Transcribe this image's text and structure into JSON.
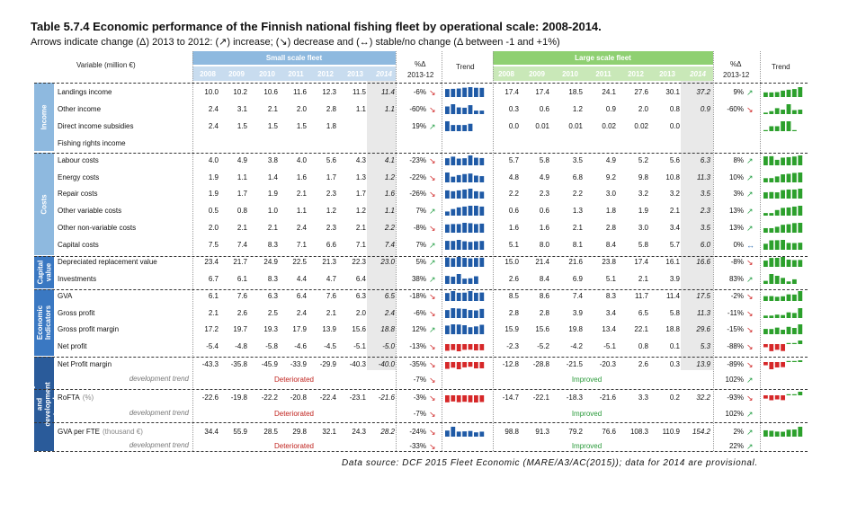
{
  "title": "Table 5.7.4 Economic performance of the Finnish national fishing fleet by operational scale: 2008-2014.",
  "subtitle": "Arrows indicate change (Δ) 2013 to 2012: (↗) increase; (↘) decrease and (↔) stable/no change (Δ between -1 and +1%)",
  "header": {
    "variable": "Variable (million €)",
    "small_fleet": "Small scale fleet",
    "large_fleet": "Large scale fleet",
    "pct_delta": "%Δ",
    "pct_years": "2013-12",
    "trend": "Trend",
    "years": [
      "2008",
      "2009",
      "2010",
      "2011",
      "2012",
      "2013",
      "2014"
    ]
  },
  "sections": [
    {
      "key": "income",
      "label": "Income",
      "color": "#8eb9df"
    },
    {
      "key": "costs",
      "label": "Costs",
      "color": "#8eb9df"
    },
    {
      "key": "capital",
      "label": "Capital value",
      "color": "#3a78c2"
    },
    {
      "key": "economic",
      "label": "Economic Indicators",
      "color": "#3a78c2"
    },
    {
      "key": "profitability",
      "label": "Profitability and development trends",
      "color": "#2a5b9a"
    }
  ],
  "rows": [
    {
      "label": "Landings income",
      "small": [
        "10.0",
        "10.2",
        "10.6",
        "11.6",
        "12.3",
        "11.5",
        "11.4"
      ],
      "spct": "-6%",
      "sarr": "down",
      "large": [
        "17.4",
        "17.4",
        "18.5",
        "24.1",
        "27.6",
        "30.1",
        "37.2"
      ],
      "lpct": "9%",
      "larr": "up"
    },
    {
      "label": "Other income",
      "small": [
        "2.4",
        "3.1",
        "2.1",
        "2.0",
        "2.8",
        "1.1",
        "1.1"
      ],
      "spct": "-60%",
      "sarr": "down",
      "large": [
        "0.3",
        "0.6",
        "1.2",
        "0.9",
        "2.0",
        "0.8",
        "0.9"
      ],
      "lpct": "-60%",
      "larr": "down"
    },
    {
      "label": "Direct income subsidies",
      "small": [
        "2.4",
        "1.5",
        "1.5",
        "1.5",
        "1.8",
        "",
        ""
      ],
      "spct": "19%",
      "sarr": "up",
      "large": [
        "0.0",
        "0.01",
        "0.01",
        "0.02",
        "0.02",
        "0.0",
        ""
      ],
      "lpct": "",
      "larr": ""
    },
    {
      "label": "Fishing rights income",
      "small": [
        "",
        "",
        "",
        "",
        "",
        "",
        ""
      ],
      "spct": "",
      "sarr": "",
      "large": [
        "",
        "",
        "",
        "",
        "",
        "",
        ""
      ],
      "lpct": "",
      "larr": ""
    },
    {
      "label": "Labour costs",
      "small": [
        "4.0",
        "4.9",
        "3.8",
        "4.0",
        "5.6",
        "4.3",
        "4.1"
      ],
      "spct": "-23%",
      "sarr": "down",
      "large": [
        "5.7",
        "5.8",
        "3.5",
        "4.9",
        "5.2",
        "5.6",
        "6.3"
      ],
      "lpct": "8%",
      "larr": "up"
    },
    {
      "label": "Energy costs",
      "small": [
        "1.9",
        "1.1",
        "1.4",
        "1.6",
        "1.7",
        "1.3",
        "1.2"
      ],
      "spct": "-22%",
      "sarr": "down",
      "large": [
        "4.8",
        "4.9",
        "6.8",
        "9.2",
        "9.8",
        "10.8",
        "11.3"
      ],
      "lpct": "10%",
      "larr": "up"
    },
    {
      "label": "Repair costs",
      "small": [
        "1.9",
        "1.7",
        "1.9",
        "2.1",
        "2.3",
        "1.7",
        "1.6"
      ],
      "spct": "-26%",
      "sarr": "down",
      "large": [
        "2.2",
        "2.3",
        "2.2",
        "3.0",
        "3.2",
        "3.2",
        "3.5"
      ],
      "lpct": "3%",
      "larr": "up"
    },
    {
      "label": "Other variable costs",
      "small": [
        "0.5",
        "0.8",
        "1.0",
        "1.1",
        "1.2",
        "1.2",
        "1.1"
      ],
      "spct": "7%",
      "sarr": "up",
      "large": [
        "0.6",
        "0.6",
        "1.3",
        "1.8",
        "1.9",
        "2.1",
        "2.3"
      ],
      "lpct": "13%",
      "larr": "up"
    },
    {
      "label": "Other non-variable costs",
      "small": [
        "2.0",
        "2.1",
        "2.1",
        "2.4",
        "2.3",
        "2.1",
        "2.2"
      ],
      "spct": "-8%",
      "sarr": "down",
      "large": [
        "1.6",
        "1.6",
        "2.1",
        "2.8",
        "3.0",
        "3.4",
        "3.5"
      ],
      "lpct": "13%",
      "larr": "up"
    },
    {
      "label": "Capital costs",
      "small": [
        "7.5",
        "7.4",
        "8.3",
        "7.1",
        "6.6",
        "7.1",
        "7.4"
      ],
      "spct": "7%",
      "sarr": "up",
      "large": [
        "5.1",
        "8.0",
        "8.1",
        "8.4",
        "5.8",
        "5.7",
        "6.0"
      ],
      "lpct": "0%",
      "larr": "flat"
    },
    {
      "label": "Depreciated replacement value",
      "small": [
        "23.4",
        "21.7",
        "24.9",
        "22.5",
        "21.3",
        "22.3",
        "23.0"
      ],
      "spct": "5%",
      "sarr": "up",
      "large": [
        "15.0",
        "21.4",
        "21.6",
        "23.8",
        "17.4",
        "16.1",
        "16.6"
      ],
      "lpct": "-8%",
      "larr": "down"
    },
    {
      "label": "Investments",
      "small": [
        "6.7",
        "6.1",
        "8.3",
        "4.4",
        "4.7",
        "6.4",
        ""
      ],
      "spct": "38%",
      "sarr": "up",
      "large": [
        "2.6",
        "8.4",
        "6.9",
        "5.1",
        "2.1",
        "3.9",
        ""
      ],
      "lpct": "83%",
      "larr": "up"
    },
    {
      "label": "GVA",
      "small": [
        "6.1",
        "7.6",
        "6.3",
        "6.4",
        "7.6",
        "6.3",
        "6.5"
      ],
      "spct": "-18%",
      "sarr": "down",
      "large": [
        "8.5",
        "8.6",
        "7.4",
        "8.3",
        "11.7",
        "11.4",
        "17.5"
      ],
      "lpct": "-2%",
      "larr": "down"
    },
    {
      "label": "Gross profit",
      "small": [
        "2.1",
        "2.6",
        "2.5",
        "2.4",
        "2.1",
        "2.0",
        "2.4"
      ],
      "spct": "-6%",
      "sarr": "down",
      "large": [
        "2.8",
        "2.8",
        "3.9",
        "3.4",
        "6.5",
        "5.8",
        "11.3"
      ],
      "lpct": "-11%",
      "larr": "down"
    },
    {
      "label": "Gross profit margin",
      "small": [
        "17.2",
        "19.7",
        "19.3",
        "17.9",
        "13.9",
        "15.6",
        "18.8"
      ],
      "spct": "12%",
      "sarr": "up",
      "large": [
        "15.9",
        "15.6",
        "19.8",
        "13.4",
        "22.1",
        "18.8",
        "29.6"
      ],
      "lpct": "-15%",
      "larr": "down"
    },
    {
      "label": "Net profit",
      "small": [
        "-5.4",
        "-4.8",
        "-5.8",
        "-4.6",
        "-4.5",
        "-5.1",
        "-5.0"
      ],
      "spct": "-13%",
      "sarr": "down",
      "large": [
        "-2.3",
        "-5.2",
        "-4.2",
        "-5.1",
        "0.8",
        "0.1",
        "5.3"
      ],
      "lpct": "-88%",
      "larr": "down"
    },
    {
      "label": "Net Profit margin",
      "small": [
        "-43.3",
        "-35.8",
        "-45.9",
        "-33.9",
        "-29.9",
        "-40.3",
        "-40.0"
      ],
      "spct": "-35%",
      "sarr": "down",
      "large": [
        "-12.8",
        "-28.8",
        "-21.5",
        "-20.3",
        "2.6",
        "0.3",
        "13.9"
      ],
      "lpct": "-89%",
      "larr": "down"
    },
    {
      "label": "RoFTA",
      "unit": "(%)",
      "small": [
        "-22.6",
        "-19.8",
        "-22.2",
        "-20.8",
        "-22.4",
        "-23.1",
        "-21.6"
      ],
      "spct": "-3%",
      "sarr": "down",
      "large": [
        "-14.7",
        "-22.1",
        "-18.3",
        "-21.6",
        "3.3",
        "0.2",
        "32.2"
      ],
      "lpct": "-93%",
      "larr": "down"
    },
    {
      "label": "GVA per FTE",
      "unit": "(thousand €)",
      "small": [
        "34.4",
        "55.9",
        "28.5",
        "29.8",
        "32.1",
        "24.3",
        "28.2"
      ],
      "spct": "-24%",
      "sarr": "down",
      "large": [
        "98.8",
        "91.3",
        "79.2",
        "76.6",
        "108.3",
        "110.9",
        "154.2"
      ],
      "lpct": "2%",
      "larr": "up"
    }
  ],
  "dev_rows": [
    {
      "label": "development trend",
      "small_text": "Deteriorated",
      "spct": "-7%",
      "sarr": "down",
      "large_text": "Improved",
      "lpct": "102%",
      "larr": "up"
    },
    {
      "label": "development trend",
      "small_text": "Deteriorated",
      "spct": "-7%",
      "sarr": "down",
      "large_text": "Improved",
      "lpct": "102%",
      "larr": "up"
    },
    {
      "label": "development trend",
      "small_text": "Deteriorated",
      "spct": "-33%",
      "sarr": "down",
      "large_text": "Improved",
      "lpct": "22%",
      "larr": "up"
    }
  ],
  "arrows": {
    "up": "↗",
    "down": "↘",
    "flat": "↔"
  },
  "colors": {
    "small_spark": "#1f5aa6",
    "large_spark": "#2ca02c",
    "negative_spark": "#d62728"
  },
  "source": "Data source: DCF 2015 Fleet Economic (MARE/A3/AC(2015)); data for 2014 are provisional."
}
